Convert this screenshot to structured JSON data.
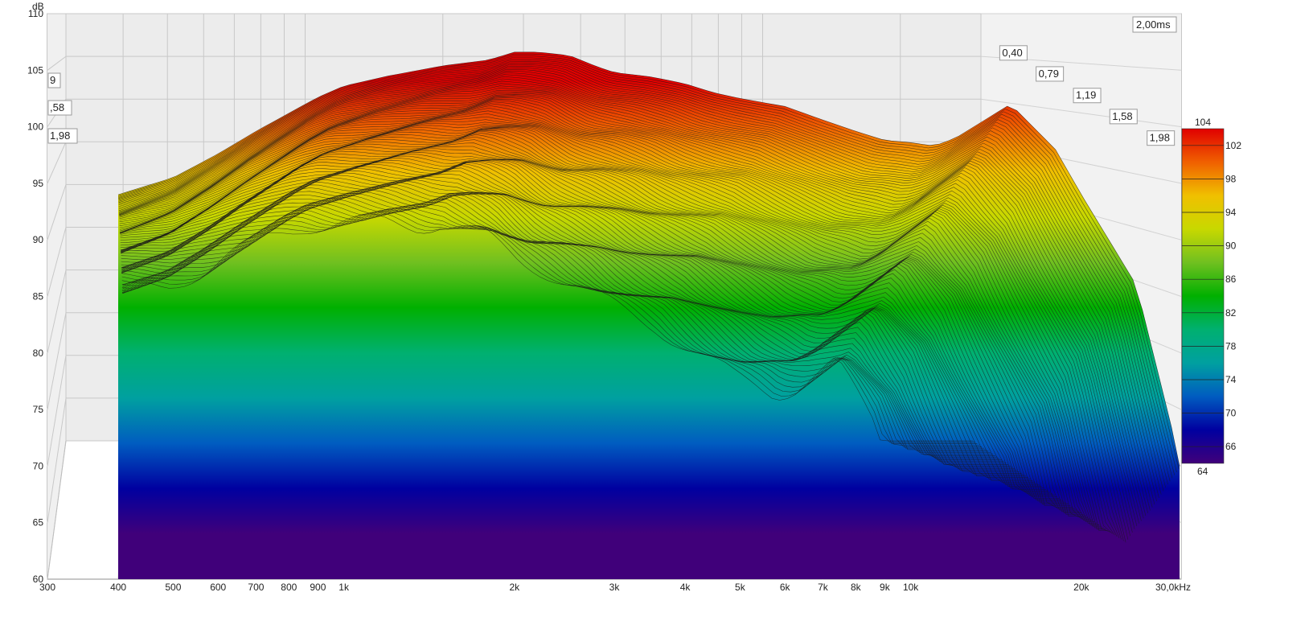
{
  "chart_data": {
    "type": "waterfall",
    "title": "",
    "xlabel": "",
    "ylabel": "dB",
    "x_scale": "log",
    "xlim": [
      300,
      30000
    ],
    "ylim": [
      60,
      110
    ],
    "x_tick_labels": [
      "300",
      "400",
      "500",
      "600",
      "700",
      "800",
      "900",
      "1k",
      "2k",
      "3k",
      "4k",
      "5k",
      "6k",
      "7k",
      "8k",
      "9k",
      "10k",
      "20k",
      "30,0kHz"
    ],
    "y_tick_labels": [
      "60",
      "65",
      "70",
      "75",
      "80",
      "85",
      "90",
      "95",
      "100",
      "105",
      "110"
    ],
    "y_axis_title": "dB",
    "time_axis_unit": "ms",
    "time_ticks": [
      "0,40",
      "0,79",
      "1,19",
      "1,58",
      "1,98"
    ],
    "time_end_label": "2,00ms",
    "left_wall_time_labels": [
      "9",
      ",58",
      "1,98"
    ],
    "colorbar": {
      "min_label": "64",
      "max_label": "104",
      "tick_labels": [
        "102",
        "98",
        "94",
        "90",
        "86",
        "82",
        "78",
        "74",
        "70",
        "66"
      ],
      "colors_top_to_bottom": [
        "#e00000",
        "#f06000",
        "#f0c000",
        "#c8d800",
        "#70c020",
        "#00b000",
        "#00b070",
        "#00a0a0",
        "#005cc0",
        "#0000a0",
        "#40007a"
      ]
    },
    "front_slice_response_db": {
      "freq_hz": [
        400,
        500,
        600,
        700,
        800,
        900,
        1000,
        1200,
        1500,
        1800,
        2000,
        2200,
        2500,
        2800,
        3000,
        3500,
        4000,
        4500,
        5000,
        6000,
        7000,
        8000,
        9000,
        10000,
        11000,
        12000,
        15000,
        18000,
        20000,
        25000,
        30000
      ],
      "level_db": [
        94,
        95.5,
        97.6,
        99.6,
        101.2,
        102.6,
        103.6,
        104.5,
        105.4,
        105.9,
        106.6,
        106.6,
        106.3,
        105.3,
        104.8,
        104.4,
        103.8,
        103.0,
        102.5,
        101.8,
        100.6,
        99.6,
        98.8,
        98.6,
        98.3,
        99,
        102,
        98,
        94,
        86,
        70
      ]
    }
  }
}
